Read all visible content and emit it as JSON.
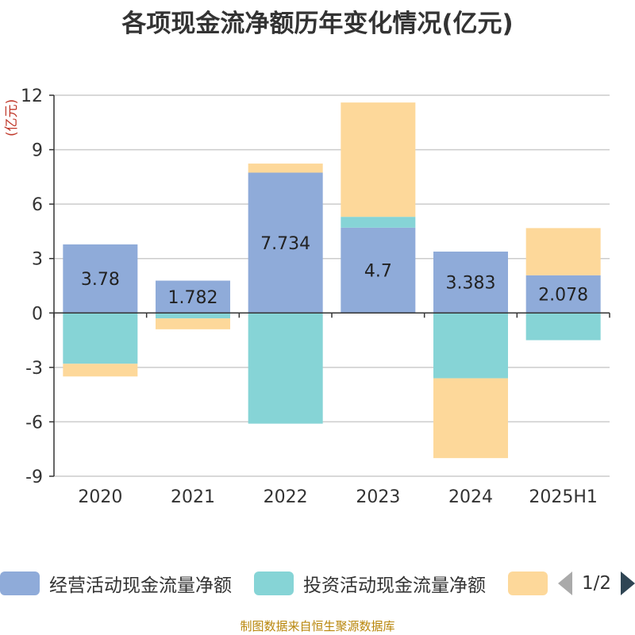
{
  "title": "各项现金流净额历年变化情况(亿元)",
  "unit_label": "(亿元)",
  "footer": "制图数据来自恒生聚源数据库",
  "legend": {
    "items": [
      {
        "label": "经营活动现金流量净额",
        "color": "#8fabd9"
      },
      {
        "label": "投资活动现金流量净额",
        "color": "#86d4d6"
      },
      {
        "label": "",
        "color": "#fdd89a"
      }
    ],
    "page_text": "1/2"
  },
  "chart_data": {
    "type": "bar",
    "stacked": true,
    "categories": [
      "2020",
      "2021",
      "2022",
      "2023",
      "2024",
      "2025H1"
    ],
    "ylim": [
      -9,
      12
    ],
    "yticks": [
      -9,
      -6,
      -3,
      0,
      3,
      6,
      9,
      12
    ],
    "grid": true,
    "series": [
      {
        "name": "经营活动现金流量净额",
        "color": "#8fabd9",
        "values": [
          3.78,
          1.782,
          7.734,
          4.7,
          3.383,
          2.078
        ],
        "labels": [
          "3.78",
          "1.782",
          "7.734",
          "4.7",
          "3.383",
          "2.078"
        ]
      },
      {
        "name": "投资活动现金流量净额",
        "color": "#86d4d6",
        "values": [
          -2.8,
          -0.3,
          -6.1,
          0.6,
          -3.6,
          -1.5
        ]
      },
      {
        "name": "",
        "color": "#fdd89a",
        "values": [
          -0.7,
          -0.6,
          0.5,
          6.3,
          -4.4,
          2.6
        ]
      }
    ]
  }
}
